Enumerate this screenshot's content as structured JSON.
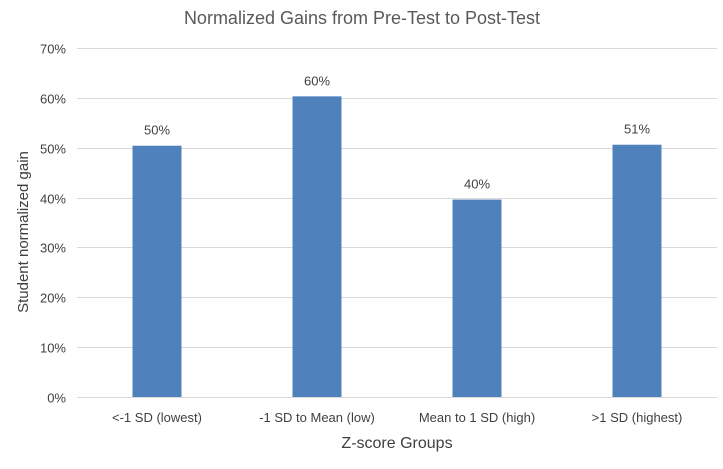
{
  "chart_data": {
    "type": "bar",
    "title": "Normalized Gains from Pre-Test to Post-Test",
    "xlabel": "Z-score Groups",
    "ylabel": "Student normalized gain",
    "categories": [
      "<-1 SD (lowest)",
      "-1 SD to Mean (low)",
      "Mean to 1 SD (high)",
      ">1 SD (highest)"
    ],
    "values": [
      50.4,
      60.3,
      39.6,
      50.6
    ],
    "data_labels": [
      "50%",
      "60%",
      "40%",
      "51%"
    ],
    "ylim": [
      0,
      70
    ],
    "yticks": [
      0,
      10,
      20,
      30,
      40,
      50,
      60,
      70
    ],
    "ytick_labels": [
      "0%",
      "10%",
      "20%",
      "30%",
      "40%",
      "50%",
      "60%",
      "70%"
    ],
    "grid": true,
    "legend": "none",
    "colors": {
      "bar": "#4f81bd",
      "grid": "#d9d9d9",
      "text": "#404040",
      "title": "#595959"
    }
  }
}
